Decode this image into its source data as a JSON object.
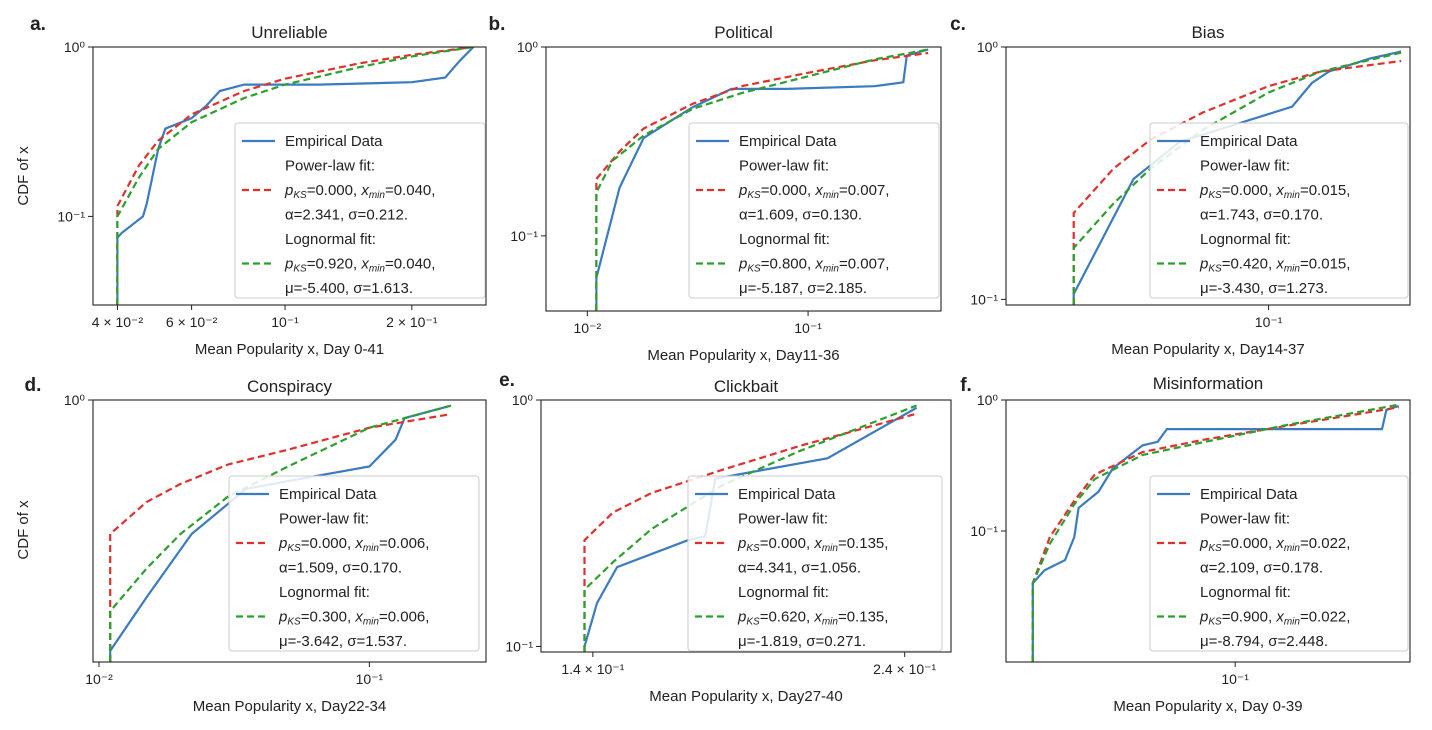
{
  "ylabel": "CDF of x",
  "colors": {
    "empirical": "#3b7bbf",
    "powerlaw": "#e0302c",
    "lognormal": "#2ca02c"
  },
  "chart_data": [
    {
      "letter": "a.",
      "title": "Unreliable",
      "type": "line",
      "xlabel": "Mean Popularity x, Day 0-41",
      "xscale": "log",
      "yscale": "log",
      "xlim": [
        0.035,
        0.3
      ],
      "ylim": [
        0.03,
        1.0
      ],
      "xticks": [
        {
          "v": 0.04,
          "label": "4 × 10⁻²"
        },
        {
          "v": 0.06,
          "label": "6 × 10⁻²"
        },
        {
          "v": 0.1,
          "label": "10⁻¹"
        },
        {
          "v": 0.2,
          "label": "2 × 10⁻¹"
        }
      ],
      "yticks": [
        {
          "v": 0.1,
          "label": "10⁻¹"
        },
        {
          "v": 1.0,
          "label": "10⁰"
        }
      ],
      "legend": {
        "empirical": "Empirical Data",
        "power_header": "Power-law fit:",
        "power_l1": [
          "p",
          "KS",
          "=0.000, ",
          "x",
          "min",
          "=0.040,"
        ],
        "power_l2": "α=2.341, σ=0.212.",
        "log_header": "Lognormal fit:",
        "log_l1": [
          "p",
          "KS",
          "=0.920, ",
          "x",
          "min",
          "=0.040,"
        ],
        "log_l2": "μ=-5.400, σ=1.613."
      },
      "series": [
        {
          "key": "empirical",
          "x": [
            0.04,
            0.04,
            0.041,
            0.046,
            0.047,
            0.05,
            0.052,
            0.06,
            0.065,
            0.07,
            0.08,
            0.12,
            0.2,
            0.24,
            0.26,
            0.28
          ],
          "y": [
            0.03,
            0.075,
            0.08,
            0.1,
            0.12,
            0.25,
            0.33,
            0.38,
            0.45,
            0.55,
            0.6,
            0.6,
            0.62,
            0.66,
            0.83,
            1.0
          ]
        },
        {
          "key": "powerlaw",
          "x": [
            0.04,
            0.04,
            0.045,
            0.05,
            0.06,
            0.08,
            0.1,
            0.15,
            0.2,
            0.28
          ],
          "y": [
            0.03,
            0.115,
            0.2,
            0.28,
            0.4,
            0.55,
            0.65,
            0.8,
            0.9,
            1.0
          ]
        },
        {
          "key": "lognormal",
          "x": [
            0.04,
            0.04,
            0.045,
            0.05,
            0.06,
            0.08,
            0.1,
            0.15,
            0.2,
            0.28
          ],
          "y": [
            0.03,
            0.1,
            0.17,
            0.25,
            0.36,
            0.5,
            0.6,
            0.76,
            0.88,
            1.0
          ]
        }
      ]
    },
    {
      "letter": "b.",
      "title": "Political",
      "type": "line",
      "xlabel": "Mean Popularity x, Day11-36",
      "xscale": "log",
      "yscale": "log",
      "xlim": [
        0.0065,
        0.4
      ],
      "ylim": [
        0.04,
        1.0
      ],
      "xticks": [
        {
          "v": 0.01,
          "label": "10⁻²"
        },
        {
          "v": 0.1,
          "label": "10⁻¹"
        }
      ],
      "yticks": [
        {
          "v": 0.1,
          "label": "10⁻¹"
        },
        {
          "v": 1.0,
          "label": "10⁰"
        }
      ],
      "legend": {
        "empirical": "Empirical Data",
        "power_header": "Power-law fit:",
        "power_l1": [
          "p",
          "KS",
          "=0.000, ",
          "x",
          "min",
          "=0.007,"
        ],
        "power_l2": "α=1.609, σ=0.130.",
        "log_header": "Lognormal fit:",
        "log_l1": [
          "p",
          "KS",
          "=0.800, ",
          "x",
          "min",
          "=0.007,"
        ],
        "log_l2": "μ=-5.187, σ=2.185."
      },
      "series": [
        {
          "key": "empirical",
          "x": [
            0.011,
            0.011,
            0.014,
            0.018,
            0.03,
            0.045,
            0.08,
            0.2,
            0.27,
            0.28,
            0.35
          ],
          "y": [
            0.04,
            0.06,
            0.18,
            0.33,
            0.48,
            0.6,
            0.6,
            0.62,
            0.65,
            0.9,
            0.97
          ]
        },
        {
          "key": "powerlaw",
          "x": [
            0.011,
            0.011,
            0.014,
            0.018,
            0.03,
            0.05,
            0.1,
            0.2,
            0.35
          ],
          "y": [
            0.04,
            0.2,
            0.28,
            0.37,
            0.5,
            0.62,
            0.73,
            0.85,
            0.93
          ]
        },
        {
          "key": "lognormal",
          "x": [
            0.011,
            0.011,
            0.013,
            0.018,
            0.03,
            0.05,
            0.1,
            0.2,
            0.35
          ],
          "y": [
            0.04,
            0.17,
            0.25,
            0.34,
            0.47,
            0.57,
            0.7,
            0.86,
            0.97
          ]
        }
      ]
    },
    {
      "letter": "c.",
      "title": "Bias",
      "type": "line",
      "xlabel": "Mean Popularity x, Day14-37",
      "xscale": "log",
      "yscale": "log",
      "xlim": [
        0.013,
        0.3
      ],
      "ylim": [
        0.095,
        1.0
      ],
      "xticks": [
        {
          "v": 0.1,
          "label": "10⁻¹"
        }
      ],
      "yticks": [
        {
          "v": 0.1,
          "label": "10⁻¹"
        },
        {
          "v": 1.0,
          "label": "10⁰"
        }
      ],
      "legend": {
        "empirical": "Empirical Data",
        "power_header": "Power-law fit:",
        "power_l1": [
          "p",
          "KS",
          "=0.000, ",
          "x",
          "min",
          "=0.015,"
        ],
        "power_l2": "α=1.743, σ=0.170.",
        "log_header": "Lognormal fit:",
        "log_l1": [
          "p",
          "KS",
          "=0.420, ",
          "x",
          "min",
          "=0.015,"
        ],
        "log_l2": "μ=-3.430, σ=1.273."
      },
      "series": [
        {
          "key": "empirical",
          "x": [
            0.022,
            0.022,
            0.035,
            0.05,
            0.08,
            0.12,
            0.14,
            0.16,
            0.22,
            0.28
          ],
          "y": [
            0.095,
            0.105,
            0.3,
            0.42,
            0.5,
            0.58,
            0.72,
            0.8,
            0.9,
            0.96
          ]
        },
        {
          "key": "powerlaw",
          "x": [
            0.022,
            0.022,
            0.03,
            0.04,
            0.06,
            0.1,
            0.15,
            0.28
          ],
          "y": [
            0.095,
            0.22,
            0.33,
            0.43,
            0.55,
            0.7,
            0.8,
            0.88
          ]
        },
        {
          "key": "lognormal",
          "x": [
            0.022,
            0.022,
            0.03,
            0.04,
            0.06,
            0.1,
            0.15,
            0.28
          ],
          "y": [
            0.095,
            0.16,
            0.24,
            0.33,
            0.47,
            0.66,
            0.8,
            0.95
          ]
        }
      ]
    },
    {
      "letter": "d.",
      "title": "Conspiracy",
      "type": "line",
      "xlabel": "Mean Popularity x, Day22-34",
      "xscale": "log",
      "yscale": "log",
      "xlim": [
        0.0095,
        0.27
      ],
      "ylim": [
        0.095,
        1.0
      ],
      "xticks": [
        {
          "v": 0.01,
          "label": "10⁻²"
        },
        {
          "v": 0.1,
          "label": "10⁻¹"
        }
      ],
      "yticks": [
        {
          "v": 1.0,
          "label": "10⁰"
        }
      ],
      "legend": {
        "empirical": "Empirical Data",
        "power_header": "Power-law fit:",
        "power_l1": [
          "p",
          "KS",
          "=0.000, ",
          "x",
          "min",
          "=0.006,"
        ],
        "power_l2": "α=1.509, σ=0.170.",
        "log_header": "Lognormal fit:",
        "log_l1": [
          "p",
          "KS",
          "=0.300, ",
          "x",
          "min",
          "=0.006,"
        ],
        "log_l2": "μ=-3.642, σ=1.537."
      },
      "series": [
        {
          "key": "empirical",
          "x": [
            0.011,
            0.011,
            0.015,
            0.022,
            0.035,
            0.06,
            0.1,
            0.125,
            0.135,
            0.2
          ],
          "y": [
            0.095,
            0.105,
            0.17,
            0.3,
            0.45,
            0.5,
            0.55,
            0.7,
            0.85,
            0.95
          ]
        },
        {
          "key": "powerlaw",
          "x": [
            0.011,
            0.011,
            0.015,
            0.02,
            0.03,
            0.05,
            0.1,
            0.2
          ],
          "y": [
            0.095,
            0.3,
            0.4,
            0.47,
            0.56,
            0.64,
            0.78,
            0.88
          ]
        },
        {
          "key": "lognormal",
          "x": [
            0.011,
            0.011,
            0.015,
            0.02,
            0.03,
            0.05,
            0.1,
            0.2
          ],
          "y": [
            0.095,
            0.15,
            0.22,
            0.3,
            0.42,
            0.55,
            0.78,
            0.95
          ]
        }
      ]
    },
    {
      "letter": "e.",
      "title": "Clickbait",
      "type": "line",
      "xlabel": "Mean Popularity x, Day27-40",
      "xscale": "log",
      "yscale": "log",
      "xlim": [
        0.128,
        0.26
      ],
      "ylim": [
        0.095,
        1.0
      ],
      "xticks": [
        {
          "v": 0.14,
          "label": "1.4 × 10⁻¹"
        },
        {
          "v": 0.24,
          "label": "2.4 × 10⁻¹"
        }
      ],
      "yticks": [
        {
          "v": 0.1,
          "label": "10⁻¹"
        },
        {
          "v": 1.0,
          "label": "10⁰"
        }
      ],
      "legend": {
        "empirical": "Empirical Data",
        "power_header": "Power-law fit:",
        "power_l1": [
          "p",
          "KS",
          "=0.000, ",
          "x",
          "min",
          "=0.135,"
        ],
        "power_l2": "α=4.341, σ=1.056.",
        "log_header": "Lognormal fit:",
        "log_l1": [
          "p",
          "KS",
          "=0.620, ",
          "x",
          "min",
          "=0.135,"
        ],
        "log_l2": "μ=-1.819, σ=0.271."
      },
      "series": [
        {
          "key": "empirical",
          "x": [
            0.138,
            0.138,
            0.141,
            0.146,
            0.165,
            0.17,
            0.173,
            0.21,
            0.245
          ],
          "y": [
            0.095,
            0.1,
            0.15,
            0.21,
            0.27,
            0.28,
            0.48,
            0.58,
            0.93
          ]
        },
        {
          "key": "powerlaw",
          "x": [
            0.138,
            0.138,
            0.145,
            0.155,
            0.175,
            0.2,
            0.245
          ],
          "y": [
            0.095,
            0.27,
            0.35,
            0.42,
            0.52,
            0.65,
            0.88
          ]
        },
        {
          "key": "lognormal",
          "x": [
            0.138,
            0.138,
            0.145,
            0.155,
            0.175,
            0.2,
            0.245
          ],
          "y": [
            0.095,
            0.17,
            0.22,
            0.3,
            0.45,
            0.62,
            0.95
          ]
        }
      ]
    },
    {
      "letter": "f.",
      "title": "Misinformation",
      "type": "line",
      "xlabel": "Mean Popularity x, Day 0-39",
      "xscale": "log",
      "yscale": "log",
      "xlim": [
        0.018,
        0.37
      ],
      "ylim": [
        0.01,
        1.0
      ],
      "xticks": [
        {
          "v": 0.1,
          "label": "10⁻¹"
        }
      ],
      "yticks": [
        {
          "v": 0.1,
          "label": "10⁻¹"
        },
        {
          "v": 1.0,
          "label": "10⁰"
        }
      ],
      "legend": {
        "empirical": "Empirical Data",
        "power_header": "Power-law fit:",
        "power_l1": [
          "p",
          "KS",
          "=0.000, ",
          "x",
          "min",
          "=0.022,"
        ],
        "power_l2": "α=2.109, σ=0.178.",
        "log_header": "Lognormal fit:",
        "log_l1": [
          "p",
          "KS",
          "=0.900, ",
          "x",
          "min",
          "=0.022,"
        ],
        "log_l2": "μ=-8.794, σ=2.448."
      },
      "series": [
        {
          "key": "empirical",
          "x": [
            0.022,
            0.022,
            0.024,
            0.028,
            0.03,
            0.031,
            0.036,
            0.04,
            0.05,
            0.056,
            0.06,
            0.3,
            0.31,
            0.34
          ],
          "y": [
            0.01,
            0.04,
            0.05,
            0.06,
            0.09,
            0.15,
            0.2,
            0.3,
            0.45,
            0.48,
            0.6,
            0.6,
            0.84,
            0.9
          ]
        },
        {
          "key": "powerlaw",
          "x": [
            0.022,
            0.022,
            0.025,
            0.03,
            0.035,
            0.05,
            0.08,
            0.15,
            0.34
          ],
          "y": [
            0.01,
            0.04,
            0.09,
            0.17,
            0.27,
            0.4,
            0.5,
            0.64,
            0.88
          ]
        },
        {
          "key": "lognormal",
          "x": [
            0.022,
            0.022,
            0.025,
            0.03,
            0.035,
            0.05,
            0.08,
            0.15,
            0.34
          ],
          "y": [
            0.01,
            0.04,
            0.08,
            0.16,
            0.25,
            0.38,
            0.48,
            0.65,
            0.92
          ]
        }
      ]
    }
  ]
}
